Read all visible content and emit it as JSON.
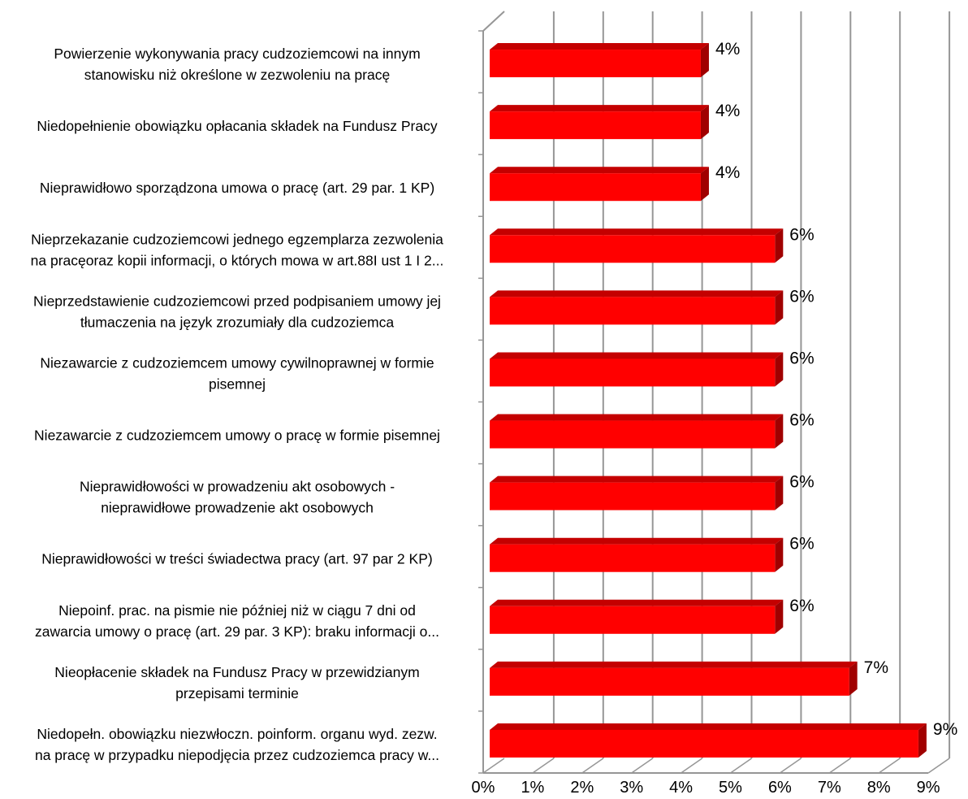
{
  "chart_data": {
    "type": "bar",
    "orientation": "horizontal",
    "style": "3d",
    "categories": [
      [
        "Powierzenie wykonywania pracy cudzoziemcowi na innym",
        "stanowisku niż określone w zezwoleniu na pracę"
      ],
      [
        "Niedopełnienie obowiązku opłacania składek na Fundusz Pracy"
      ],
      [
        "Nieprawidłowo sporządzona umowa o pracę (art. 29 par. 1 KP)"
      ],
      [
        "Nieprzekazanie cudzoziemcowi jednego egzemplarza zezwolenia",
        "na pracęoraz kopii informacji, o których mowa w art.88I ust 1 I 2..."
      ],
      [
        "Nieprzedstawienie cudzoziemcowi przed podpisaniem umowy jej",
        "tłumaczenia na język zrozumiały dla cudzoziemca"
      ],
      [
        "Niezawarcie z cudzoziemcem umowy cywilnoprawnej w formie",
        "pisemnej"
      ],
      [
        "Niezawarcie z cudzoziemcem umowy o pracę w formie pisemnej"
      ],
      [
        "Nieprawidłowości w prowadzeniu akt osobowych -",
        "nieprawidłowe prowadzenie akt osobowych"
      ],
      [
        "Nieprawidłowości w treści świadectwa pracy (art. 97 par 2 KP)"
      ],
      [
        "Niepoinf. prac. na pismie nie później niż w ciągu 7  dni od",
        "zawarcia umowy o pracę (art. 29 par. 3 KP): braku informacji o..."
      ],
      [
        "Nieopłacenie składek na Fundusz Pracy w przewidzianym",
        "przepisami terminie"
      ],
      [
        "Niedopełn. obowiązku niezwłoczn. poinform. organu wyd. zezw.",
        "na pracę w przypadku niepodjęcia przez cudzoziemca pracy w..."
      ]
    ],
    "values": [
      0.044,
      0.044,
      0.044,
      0.059,
      0.059,
      0.059,
      0.059,
      0.059,
      0.059,
      0.059,
      0.074,
      0.088
    ],
    "data_labels": [
      "4%",
      "4%",
      "4%",
      "6%",
      "6%",
      "6%",
      "6%",
      "6%",
      "6%",
      "6%",
      "7%",
      "9%"
    ],
    "x_ticks": [
      0,
      0.01,
      0.02,
      0.03,
      0.04,
      0.05,
      0.06,
      0.07,
      0.08,
      0.09
    ],
    "x_tick_labels": [
      "0%",
      "1%",
      "2%",
      "3%",
      "4%",
      "5%",
      "6%",
      "7%",
      "8%",
      "9%"
    ],
    "xlim": [
      0,
      0.09
    ],
    "grid": "vertical",
    "legend": "none",
    "title": "",
    "xlabel": "",
    "ylabel": "",
    "colors": {
      "bar_front": "#ff0000",
      "bar_top": "#c40000",
      "bar_side": "#a00000",
      "grid": "#969696",
      "text": "#000000"
    }
  }
}
